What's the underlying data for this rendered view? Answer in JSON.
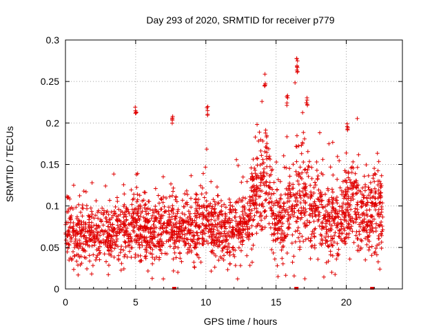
{
  "chart_data": {
    "type": "scatter",
    "title": "Day 293 of 2020, SRMTID for receiver p779",
    "xlabel": "GPS time / hours",
    "ylabel": "SRMTID / TECUs",
    "xlim": [
      0,
      24
    ],
    "ylim": [
      0,
      0.3
    ],
    "x_ticks": [
      0,
      5,
      10,
      15,
      20
    ],
    "x_tick_labels": [
      "0",
      "5",
      "10",
      "15",
      "20"
    ],
    "y_ticks": [
      0,
      0.05,
      0.1,
      0.15,
      0.2,
      0.25,
      0.3
    ],
    "y_tick_labels": [
      "0",
      "0.05",
      "0.1",
      "0.15",
      "0.2",
      "0.25",
      "0.3"
    ],
    "grid": true,
    "marker": "+",
    "series_color": "#e00000",
    "point_count_approx": 2400,
    "data_span_hours": [
      0,
      22.6
    ],
    "zero_value_marks_x": [
      7.75,
      16.45,
      21.85
    ],
    "envelope": {
      "hours": [
        0,
        1,
        2,
        3,
        4,
        5,
        6,
        7,
        8,
        9,
        10,
        11,
        12,
        13,
        13.5,
        14,
        14.5,
        15,
        15.5,
        16,
        16.5,
        17,
        18,
        19,
        20,
        20.5,
        21,
        21.5,
        22,
        22.6
      ],
      "typical_srmtid": [
        0.07,
        0.065,
        0.06,
        0.062,
        0.068,
        0.075,
        0.072,
        0.07,
        0.07,
        0.072,
        0.075,
        0.072,
        0.07,
        0.075,
        0.12,
        0.13,
        0.125,
        0.08,
        0.075,
        0.1,
        0.11,
        0.105,
        0.095,
        0.075,
        0.09,
        0.11,
        0.09,
        0.08,
        0.095,
        0.1
      ]
    },
    "peaks": [
      {
        "x": 5.0,
        "y": 0.22
      },
      {
        "x": 7.6,
        "y": 0.215
      },
      {
        "x": 10.1,
        "y": 0.227
      },
      {
        "x": 14.2,
        "y": 0.262
      },
      {
        "x": 16.5,
        "y": 0.28
      },
      {
        "x": 16.5,
        "y": 0.27
      },
      {
        "x": 15.8,
        "y": 0.236
      },
      {
        "x": 17.2,
        "y": 0.236
      },
      {
        "x": 20.1,
        "y": 0.205
      }
    ]
  }
}
